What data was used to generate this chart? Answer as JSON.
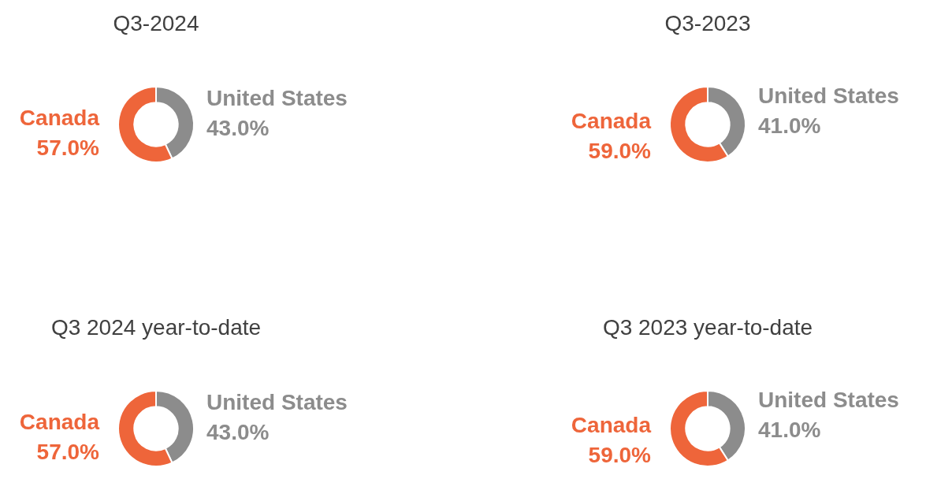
{
  "chart_data": [
    {
      "type": "donut",
      "title": "Q3-2024",
      "categories": [
        "United States",
        "Canada"
      ],
      "values": [
        43.0,
        57.0
      ],
      "colors": [
        "#8c8c8c",
        "#ee653a"
      ],
      "value_labels": [
        "43.0%",
        "57.0%"
      ]
    },
    {
      "type": "donut",
      "title": "Q3-2023",
      "categories": [
        "United States",
        "Canada"
      ],
      "values": [
        41.0,
        59.0
      ],
      "colors": [
        "#8c8c8c",
        "#ee653a"
      ],
      "value_labels": [
        "41.0%",
        "59.0%"
      ]
    },
    {
      "type": "donut",
      "title": "Q3 2024 year-to-date",
      "categories": [
        "United States",
        "Canada"
      ],
      "values": [
        43.0,
        57.0
      ],
      "colors": [
        "#8c8c8c",
        "#ee653a"
      ],
      "value_labels": [
        "43.0%",
        "57.0%"
      ]
    },
    {
      "type": "donut",
      "title": "Q3 2023 year-to-date",
      "categories": [
        "United States",
        "Canada"
      ],
      "values": [
        41.0,
        59.0
      ],
      "colors": [
        "#8c8c8c",
        "#ee653a"
      ],
      "value_labels": [
        "41.0%",
        "59.0%"
      ]
    }
  ]
}
